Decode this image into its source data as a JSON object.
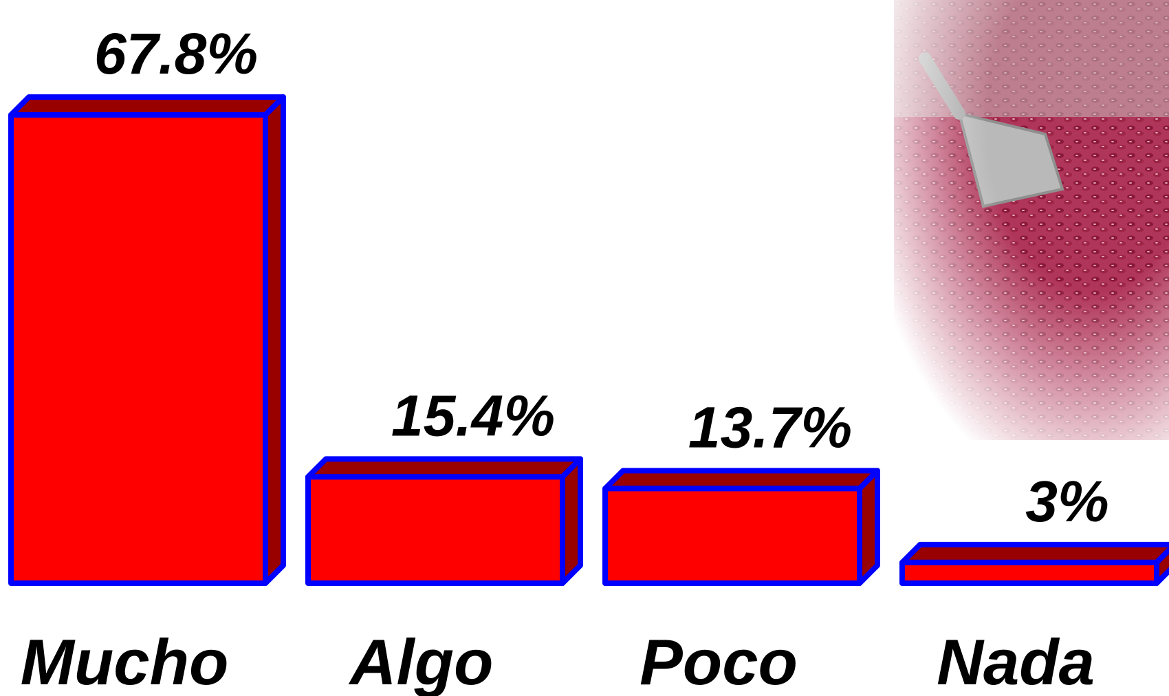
{
  "chart_data": {
    "type": "bar",
    "categories": [
      "Mucho",
      "Algo",
      "Poco",
      "Nada"
    ],
    "values": [
      67.8,
      15.4,
      13.7,
      3
    ],
    "value_labels": [
      "67.8%",
      "15.4%",
      "13.7%",
      "3%"
    ],
    "title": "",
    "xlabel": "",
    "ylabel": "",
    "ylim": [
      0,
      70
    ],
    "grid": false,
    "style": "3d-bar"
  },
  "colors": {
    "bar_front": "#ff0000",
    "bar_side": "#990000",
    "bar_outline": "#0000ff",
    "text": "#000000"
  },
  "decorations": {
    "background_photo": "red-beans-with-scoop-photo"
  }
}
